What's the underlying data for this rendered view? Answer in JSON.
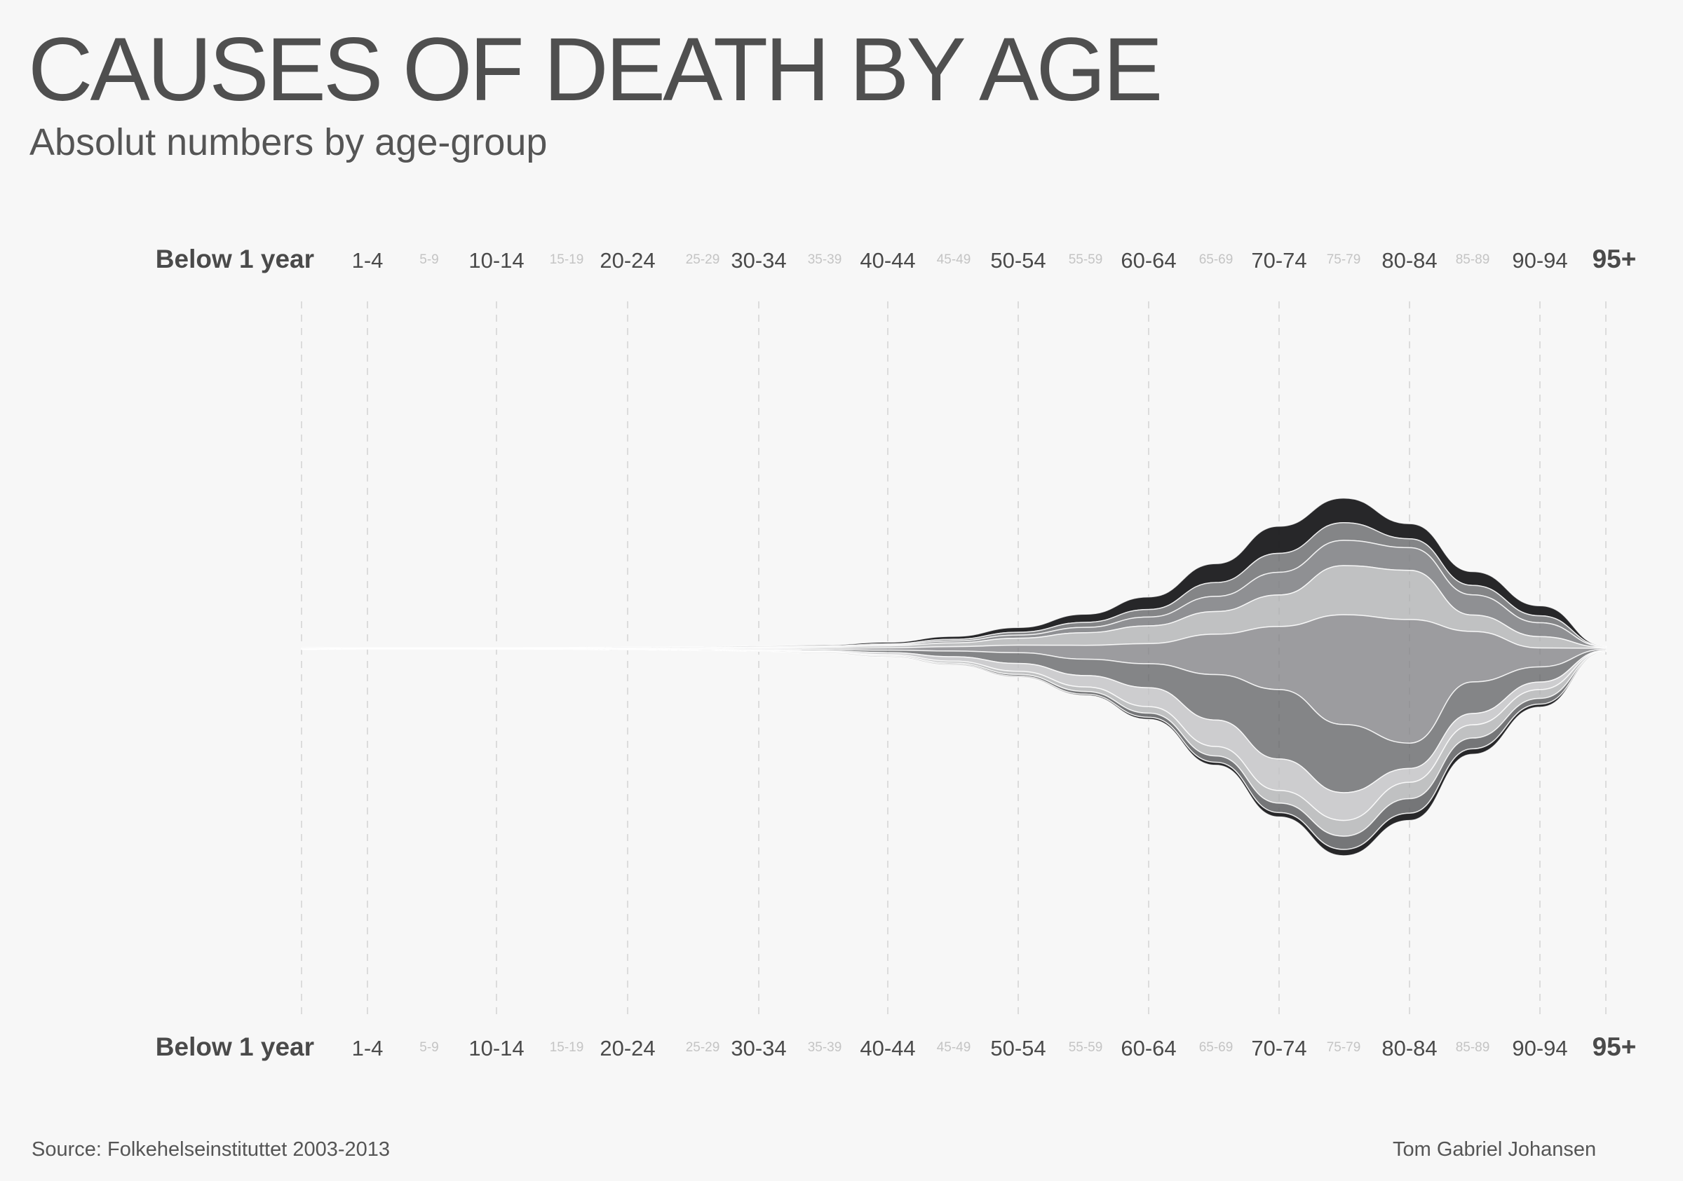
{
  "title": "CAUSES OF DEATH BY AGE",
  "subtitle": "Absolut numbers by age-group",
  "source": "Source: Folkehelseinstituttet 2003-2013",
  "author": "Tom Gabriel Johansen",
  "chart_data": {
    "type": "area",
    "variant": "streamgraph",
    "title": "CAUSES OF DEATH BY AGE",
    "subtitle": "Absolut numbers by age-group",
    "categories": [
      "Below 1 year",
      "1-4",
      "5-9",
      "10-14",
      "15-19",
      "20-24",
      "25-29",
      "30-34",
      "35-39",
      "40-44",
      "45-49",
      "50-54",
      "55-59",
      "60-64",
      "65-69",
      "70-74",
      "75-79",
      "80-84",
      "85-89",
      "90-94",
      "95+"
    ],
    "major_categories": [
      "Below 1 year",
      "1-4",
      "10-14",
      "20-24",
      "30-34",
      "40-44",
      "50-54",
      "60-64",
      "70-74",
      "80-84",
      "90-94",
      "95+"
    ],
    "axis_positions": [
      "top",
      "bottom"
    ],
    "grid": true,
    "legend": "none",
    "baseline": "centered",
    "colors": [
      "#1b1b1d",
      "#5e5f62",
      "#7d7e81",
      "#a8a9ab",
      "#c2c2c4",
      "#ffffff"
    ],
    "series": [
      {
        "values": [
          5,
          1,
          1,
          1,
          2,
          5,
          5,
          6,
          9,
          14,
          24,
          38,
          65,
          100,
          150,
          215,
          195,
          120,
          110,
          80,
          4
        ]
      },
      {
        "values": [
          2,
          1,
          1,
          1,
          1,
          2,
          2,
          3,
          4,
          8,
          13,
          22,
          40,
          60,
          110,
          150,
          140,
          70,
          75,
          55,
          3
        ]
      },
      {
        "values": [
          2,
          1,
          1,
          1,
          1,
          2,
          2,
          3,
          4,
          8,
          15,
          25,
          42,
          70,
          120,
          180,
          200,
          180,
          160,
          110,
          5
        ]
      },
      {
        "values": [
          1,
          1,
          1,
          1,
          2,
          3,
          4,
          6,
          10,
          16,
          30,
          55,
          100,
          140,
          180,
          250,
          390,
          390,
          130,
          90,
          6
        ]
      },
      {
        "values": [
          1,
          1,
          1,
          1,
          1,
          2,
          3,
          6,
          10,
          18,
          35,
          60,
          110,
          160,
          320,
          500,
          870,
          980,
          400,
          150,
          8
        ]
      },
      {
        "values": [
          1,
          1,
          1,
          2,
          2,
          3,
          4,
          6,
          10,
          20,
          45,
          85,
          130,
          190,
          360,
          550,
          540,
          200,
          250,
          120,
          9
        ]
      },
      {
        "values": [
          1,
          1,
          1,
          1,
          2,
          2,
          3,
          5,
          8,
          15,
          35,
          62,
          90,
          150,
          210,
          250,
          220,
          110,
          90,
          60,
          3
        ]
      },
      {
        "values": [
          1,
          1,
          1,
          1,
          1,
          1,
          2,
          3,
          5,
          9,
          16,
          25,
          36,
          52,
          75,
          100,
          125,
          130,
          105,
          70,
          3
        ]
      },
      {
        "values": [
          0,
          0,
          0,
          0,
          1,
          1,
          1,
          2,
          3,
          6,
          9,
          14,
          22,
          33,
          50,
          75,
          105,
          115,
          85,
          45,
          2
        ]
      },
      {
        "values": [
          0,
          0,
          0,
          0,
          0,
          1,
          1,
          1,
          2,
          3,
          5,
          7,
          10,
          16,
          24,
          35,
          50,
          58,
          44,
          24,
          1
        ]
      }
    ]
  }
}
